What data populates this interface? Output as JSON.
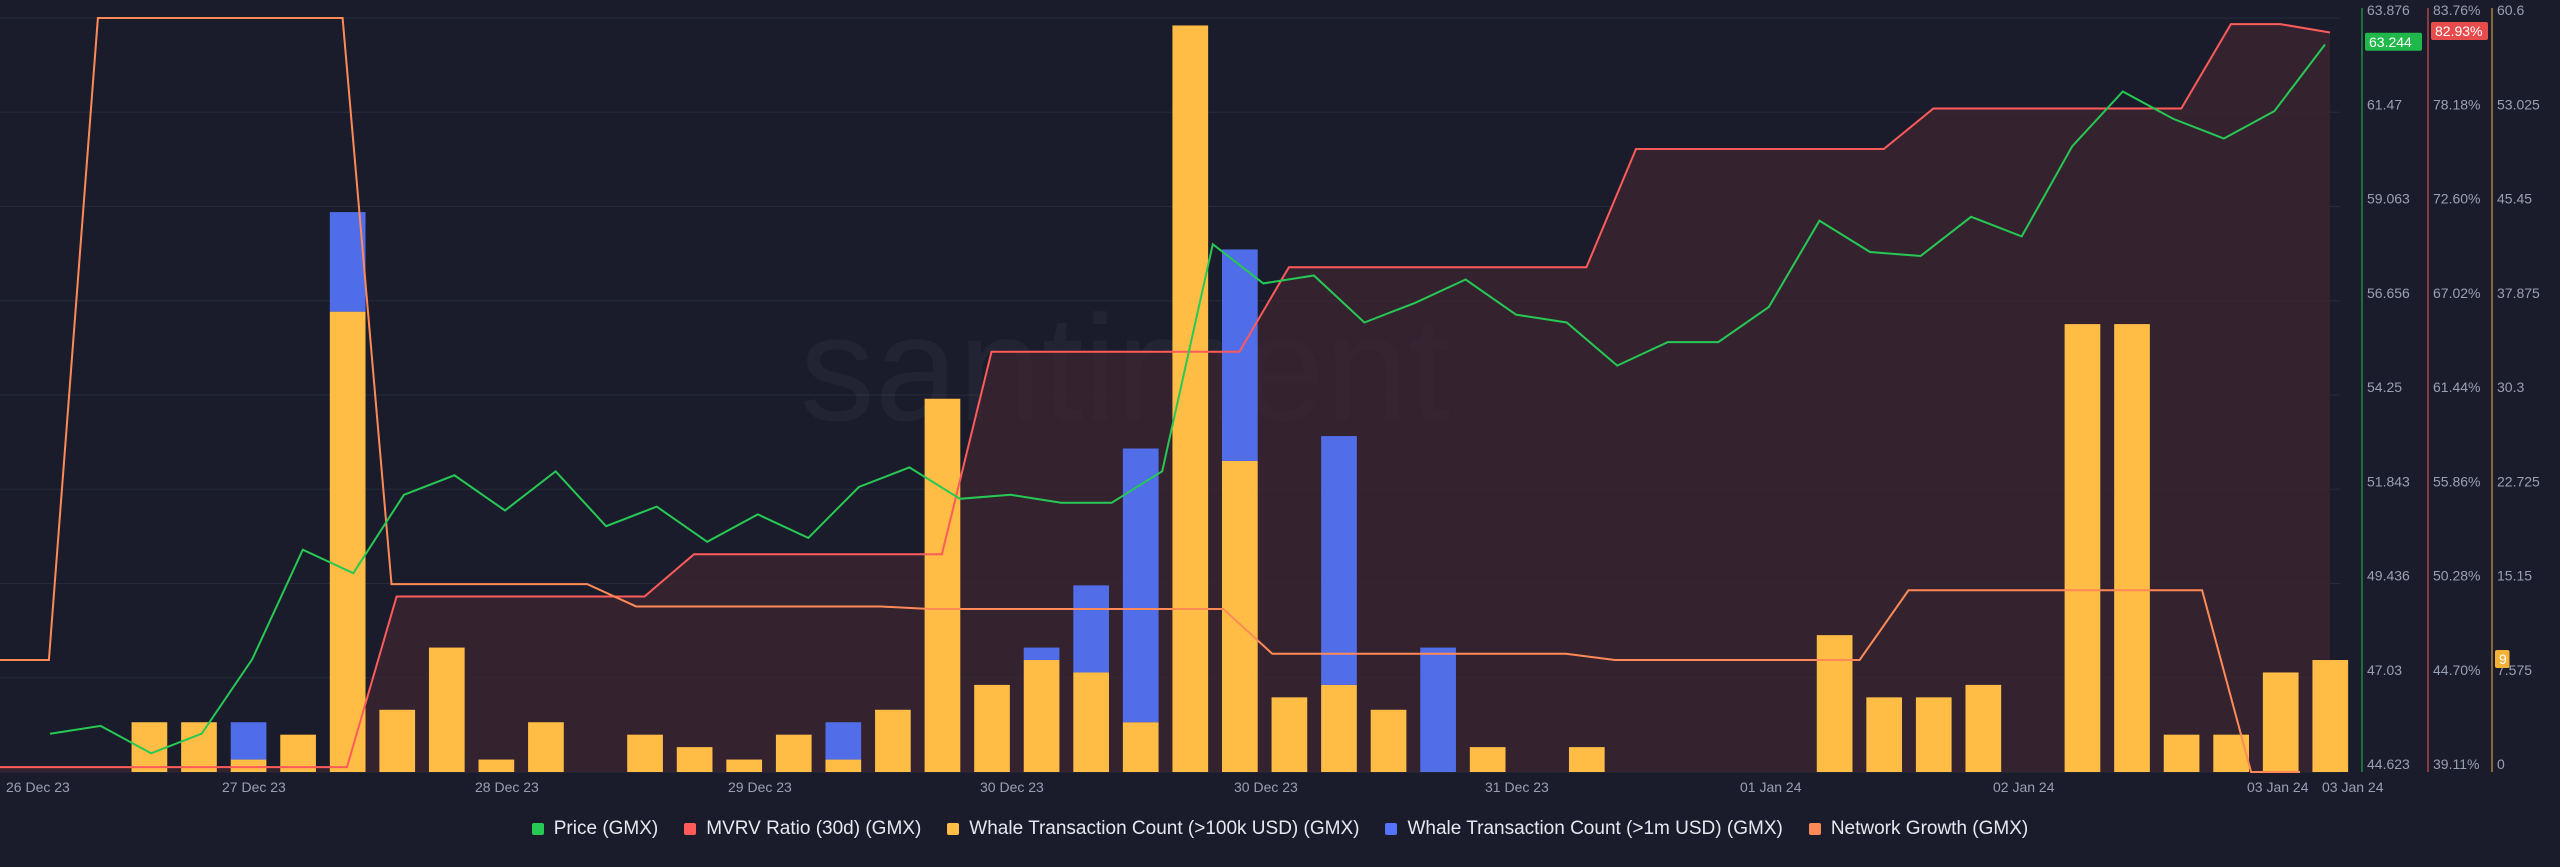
{
  "watermark": "santiment",
  "colors": {
    "background": "#1a1c2b",
    "grid": "#262a3b",
    "price": "#26c953",
    "mvrv": "#ff5b5b",
    "mvrv_fill": "#3a2530",
    "whale_100k": "#ffbd45",
    "whale_1m": "#5474f9",
    "network_growth": "#ff8a57"
  },
  "legend": [
    {
      "label": "Price (GMX)",
      "color": "#26c953"
    },
    {
      "label": "MVRV Ratio (30d) (GMX)",
      "color": "#ff5b5b"
    },
    {
      "label": "Whale Transaction Count (>100k USD) (GMX)",
      "color": "#ffbd45"
    },
    {
      "label": "Whale Transaction Count (>1m USD) (GMX)",
      "color": "#5474f9"
    },
    {
      "label": "Network Growth (GMX)",
      "color": "#ff8a57"
    }
  ],
  "chart_data": {
    "type": "bar",
    "x_labels": [
      "26 Dec 23",
      "27 Dec 23",
      "28 Dec 23",
      "29 Dec 23",
      "30 Dec 23",
      "30 Dec 23",
      "31 Dec 23",
      "01 Jan 24",
      "02 Jan 24",
      "03 Jan 24",
      "03 Jan 24"
    ],
    "axes": {
      "price": {
        "ticks": [
          "63.876",
          "61.47",
          "59.063",
          "56.656",
          "54.25",
          "51.843",
          "49.436",
          "47.03",
          "44.623"
        ],
        "range": [
          44.623,
          63.876
        ],
        "current": "63.244"
      },
      "mvrv": {
        "ticks": [
          "83.76%",
          "78.18%",
          "72.60%",
          "67.02%",
          "61.44%",
          "55.86%",
          "50.28%",
          "44.70%",
          "39.11%"
        ],
        "range": [
          39.11,
          83.76
        ],
        "current": "82.93%"
      },
      "whale": {
        "ticks": [
          "60.6",
          "53.025",
          "45.45",
          "37.875",
          "30.3",
          "22.725",
          "15.15",
          "7.575",
          "0"
        ],
        "range": [
          0,
          60.6
        ],
        "current": "9"
      }
    },
    "series": [
      {
        "name": "Whale Transaction Count (>100k USD) (GMX)",
        "type": "bar",
        "values": [
          0,
          4,
          4,
          1,
          3,
          37,
          5,
          10,
          1,
          4,
          0,
          3,
          2,
          1,
          3,
          1,
          5,
          30,
          7,
          9,
          8,
          4,
          60,
          25,
          6,
          7,
          5,
          0,
          2,
          0,
          2,
          0,
          0,
          0,
          0,
          11,
          6,
          6,
          7,
          0,
          36,
          36,
          3,
          3,
          8,
          9
        ]
      },
      {
        "name": "Whale Transaction Count (>1m USD) (GMX)",
        "type": "bar",
        "values": [
          0,
          0,
          0,
          3,
          0,
          8,
          0,
          0,
          0,
          0,
          0,
          0,
          0,
          0,
          0,
          3,
          0,
          0,
          0,
          1,
          7,
          22,
          0,
          17,
          0,
          20,
          0,
          10,
          0,
          0,
          0,
          0,
          0,
          0,
          0,
          0,
          0,
          0,
          0,
          0,
          0,
          0,
          0,
          0,
          0,
          0,
          0
        ]
      },
      {
        "name": "Price (GMX)",
        "type": "line",
        "values": [
          45.6,
          45.8,
          45.1,
          45.6,
          47.5,
          50.3,
          49.7,
          51.7,
          52.2,
          51.3,
          52.3,
          50.9,
          51.4,
          50.5,
          51.2,
          50.6,
          51.9,
          52.4,
          51.6,
          51.7,
          51.5,
          51.5,
          52.3,
          58.1,
          57.1,
          57.3,
          56.1,
          56.6,
          57.2,
          56.3,
          56.1,
          55.0,
          55.6,
          55.6,
          56.5,
          58.7,
          57.9,
          57.8,
          58.8,
          58.3,
          60.6,
          62.0,
          61.3,
          60.8,
          61.5,
          63.2
        ]
      },
      {
        "name": "MVRV Ratio (30d) (GMX)",
        "type": "area",
        "values": [
          39.4,
          39.4,
          39.4,
          39.4,
          39.4,
          39.4,
          39.4,
          39.4,
          49.5,
          49.5,
          49.5,
          49.5,
          49.5,
          49.5,
          52.0,
          52.0,
          52.0,
          52.0,
          52.0,
          52.0,
          64.0,
          64.0,
          64.0,
          64.0,
          64.0,
          64.0,
          69.0,
          69.0,
          69.0,
          69.0,
          69.0,
          69.0,
          69.0,
          76.0,
          76.0,
          76.0,
          76.0,
          76.0,
          76.0,
          78.4,
          78.4,
          78.4,
          78.4,
          78.4,
          78.4,
          83.4,
          83.4,
          82.9
        ]
      },
      {
        "name": "Network Growth (GMX)",
        "type": "line",
        "values": [
          9,
          9,
          60.6,
          60.6,
          60.6,
          60.6,
          60.6,
          60.6,
          15.1,
          15.1,
          15.1,
          15.1,
          15.1,
          13.3,
          13.3,
          13.3,
          13.3,
          13.3,
          13.3,
          13.1,
          13.1,
          13.1,
          13.1,
          13.1,
          13.1,
          13.1,
          9.5,
          9.5,
          9.5,
          9.5,
          9.5,
          9.5,
          9.5,
          9.0,
          9.0,
          9.0,
          9.0,
          9.0,
          9.0,
          14.6,
          14.6,
          14.6,
          14.6,
          14.6,
          14.6,
          14.6,
          0,
          0
        ]
      }
    ]
  }
}
